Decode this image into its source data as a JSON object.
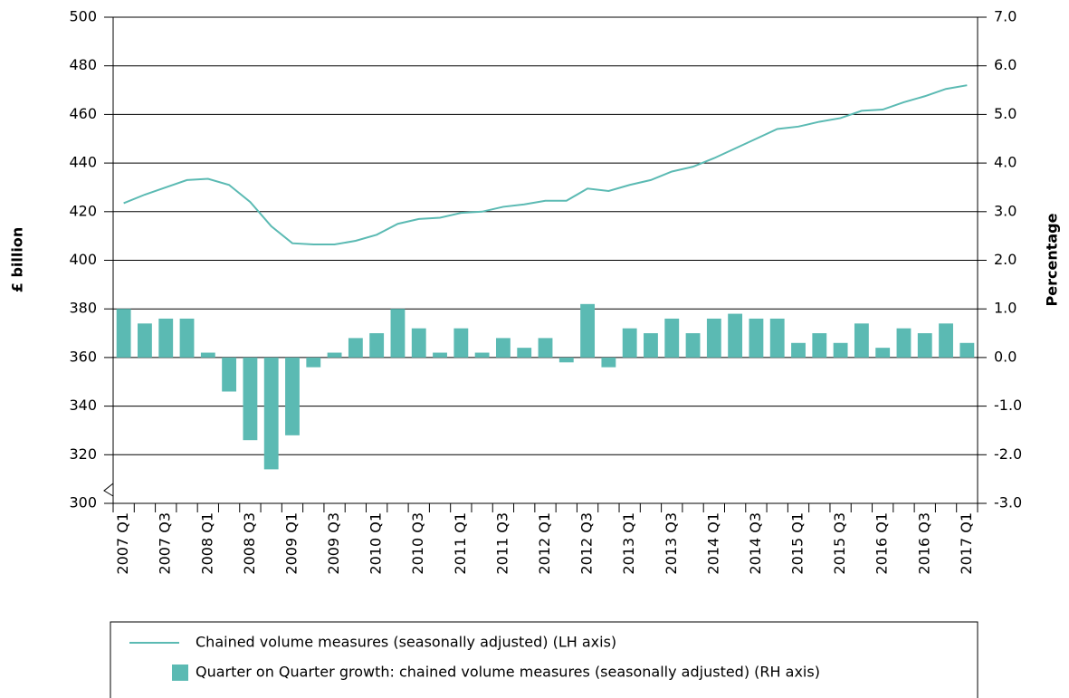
{
  "chart_data": {
    "type": "bar_line",
    "y_label": "£ billion",
    "y2_label": "Percentage",
    "categories": [
      "2007 Q1",
      null,
      "2007 Q3",
      null,
      "2008 Q1",
      null,
      "2008 Q3",
      null,
      "2009 Q1",
      null,
      "2009 Q3",
      null,
      "2010 Q1",
      null,
      "2010 Q3",
      null,
      "2011 Q1",
      null,
      "2011 Q3",
      null,
      "2012 Q1",
      null,
      "2012 Q3",
      null,
      "2013 Q1",
      null,
      "2013 Q3",
      null,
      "2014 Q1",
      null,
      "2014 Q3",
      null,
      "2015 Q1",
      null,
      "2015 Q3",
      null,
      "2016 Q1",
      null,
      "2016 Q3",
      null,
      "2017 Q1"
    ],
    "series": [
      {
        "name": "Chained volume measures (seasonally adjusted) (LH axis)",
        "type": "line",
        "color": "#5bbab3",
        "axis": "y",
        "values": [
          423.5,
          427,
          430,
          433,
          433.5,
          431,
          424,
          414,
          407,
          406.5,
          406.5,
          408,
          410.5,
          415,
          417,
          417.5,
          419.5,
          420,
          422,
          423,
          424.5,
          424.5,
          429.5,
          428.5,
          431,
          433,
          436.5,
          438.5,
          442,
          446,
          450,
          454,
          455,
          457,
          458.5,
          461.5,
          462,
          465,
          467.5,
          470.5,
          472
        ]
      },
      {
        "name": "Quarter on Quarter growth: chained volume measures (seasonally adjusted) (RH axis)",
        "type": "bar",
        "color": "#5bbab3",
        "axis": "y2",
        "values": [
          1.0,
          0.7,
          0.8,
          0.8,
          0.1,
          -0.7,
          -1.7,
          -2.3,
          -1.6,
          -0.2,
          0.1,
          0.4,
          0.5,
          1.0,
          0.6,
          0.1,
          0.6,
          0.1,
          0.4,
          0.2,
          0.4,
          -0.1,
          1.1,
          -0.2,
          0.6,
          0.5,
          0.8,
          0.5,
          0.8,
          0.9,
          0.8,
          0.8,
          0.3,
          0.5,
          0.3,
          0.7,
          0.2,
          0.6,
          0.5,
          0.7,
          0.3
        ]
      }
    ],
    "ylim": [
      300,
      500
    ],
    "yticks": [
      300,
      320,
      340,
      360,
      380,
      400,
      420,
      440,
      460,
      480,
      500
    ],
    "y2lim": [
      -3,
      7
    ],
    "y2ticks": [
      {
        "value": -3,
        "label": "-3.0"
      },
      {
        "value": -2,
        "label": "-2.0"
      },
      {
        "value": -1,
        "label": "-1.0"
      },
      {
        "value": 0,
        "label": "0.0"
      },
      {
        "value": 1,
        "label": "1.0"
      },
      {
        "value": 2,
        "label": "2.0"
      },
      {
        "value": 3,
        "label": "3.0"
      },
      {
        "value": 4,
        "label": "4.0"
      },
      {
        "value": 5,
        "label": "5.0"
      },
      {
        "value": 6,
        "label": "6.0"
      },
      {
        "value": 7,
        "label": "7.0"
      }
    ],
    "grid": true
  }
}
